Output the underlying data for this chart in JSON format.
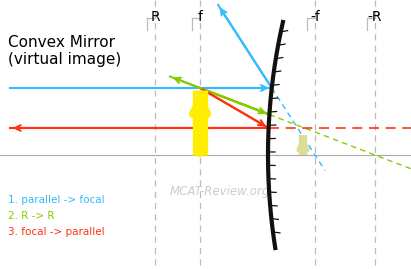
{
  "title_line1": "Convex Mirror",
  "title_line2": "(virtual image)",
  "watermark": "MCAT-Review.org",
  "legend": [
    {
      "text": "1. parallel -> focal",
      "color": "#33bbff"
    },
    {
      "text": "2. R -> R",
      "color": "#88cc00"
    },
    {
      "text": "3. focal -> parallel",
      "color": "#ff3311"
    }
  ],
  "bg_color": "#ffffff",
  "dashed_color": "#bbbbbb",
  "mirror_color": "#111111",
  "object_arrow_color": "#ffee00",
  "image_arrow_color": "#dddd99",
  "optical_axis_color": "#aaaaaa",
  "ray1_color": "#33bbff",
  "ray2_color": "#88cc00",
  "ray3_color": "#ff3311"
}
